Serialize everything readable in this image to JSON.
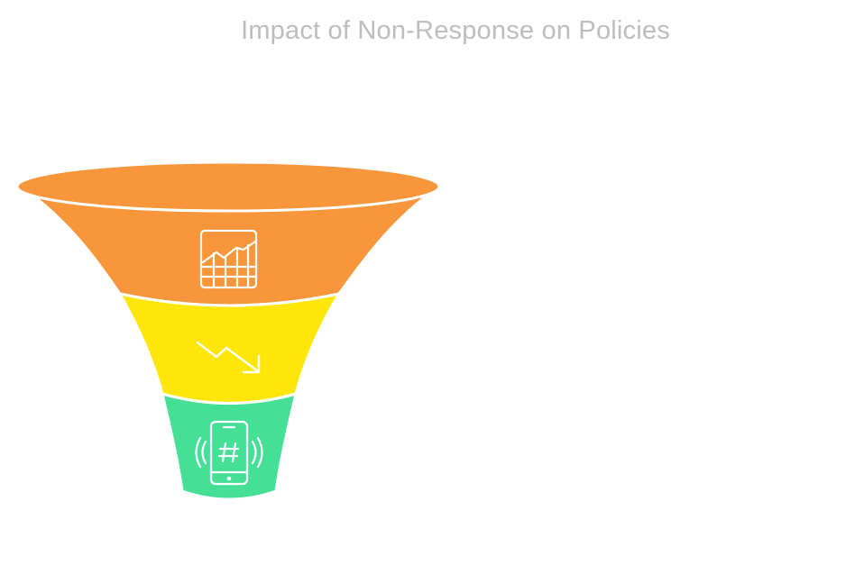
{
  "diagram": {
    "title": "Impact of Non-Response on Policies",
    "stages": [
      {
        "id": "top",
        "icon": "chart-grid-icon",
        "color": "#F7963A"
      },
      {
        "id": "middle",
        "icon": "trend-down-icon",
        "color": "#FFE60A"
      },
      {
        "id": "bottom",
        "icon": "phone-hashtag-icon",
        "color": "#45E095"
      }
    ],
    "icon_color": "#ffffff"
  }
}
